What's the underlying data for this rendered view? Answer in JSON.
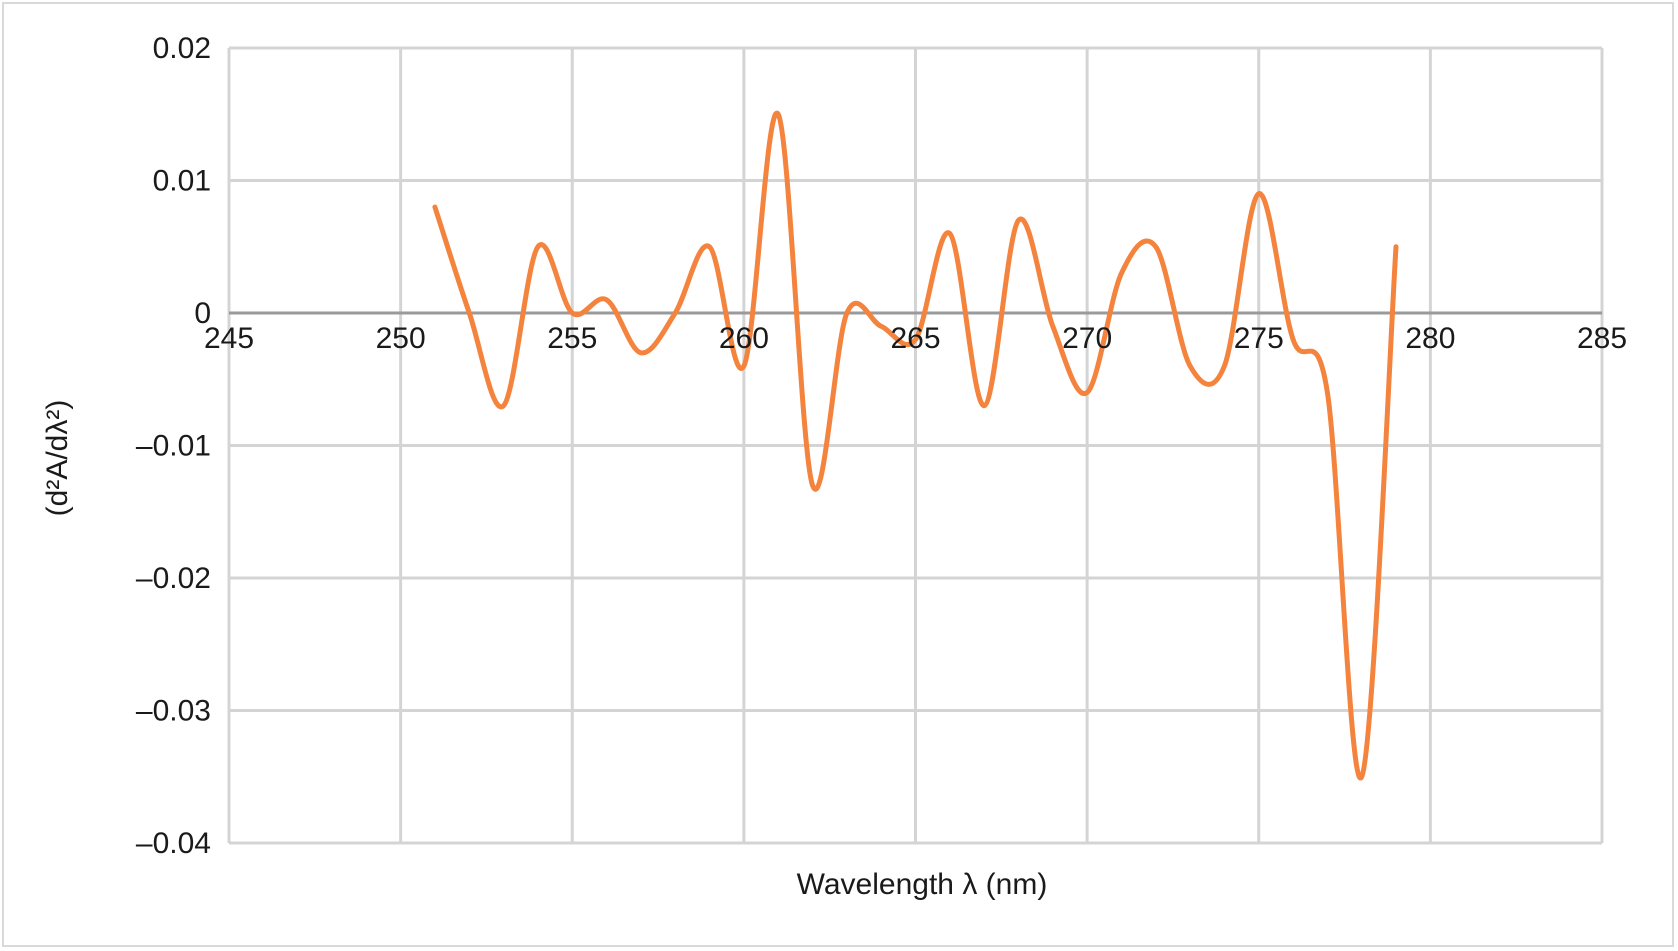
{
  "chart_data": {
    "type": "line",
    "title": "",
    "xlabel": "Wavelength λ (nm)",
    "ylabel": "(d²A/dλ²)",
    "xlim": [
      245,
      285
    ],
    "ylim": [
      -0.04,
      0.02
    ],
    "grid": true,
    "legend": "none",
    "x_ticks": [
      "245",
      "250",
      "255",
      "260",
      "265",
      "270",
      "275",
      "280",
      "285"
    ],
    "y_ticks": [
      "0.02",
      "0.01",
      "0",
      "–0.01",
      "–0.02",
      "–0.03",
      "–0.04"
    ],
    "x_tick_values": [
      245,
      250,
      255,
      260,
      265,
      270,
      275,
      280,
      285
    ],
    "y_tick_values": [
      0.02,
      0.01,
      0,
      -0.01,
      -0.02,
      -0.03,
      -0.04
    ],
    "series": [
      {
        "color": "#f4833d",
        "x": [
          251,
          252,
          253,
          254,
          255,
          256,
          257,
          258,
          259,
          260,
          261,
          262,
          263,
          264,
          265,
          266,
          267,
          268,
          269,
          270,
          271,
          272,
          273,
          274,
          275,
          276,
          277,
          278,
          279
        ],
        "y": [
          0.008,
          0.0,
          -0.007,
          0.005,
          0.0,
          0.001,
          -0.003,
          0.0,
          0.005,
          -0.004,
          0.015,
          -0.013,
          0.0,
          -0.001,
          -0.002,
          0.006,
          -0.007,
          0.007,
          -0.001,
          -0.006,
          0.003,
          0.005,
          -0.004,
          -0.004,
          0.009,
          -0.002,
          -0.006,
          -0.035,
          0.005
        ]
      }
    ]
  }
}
